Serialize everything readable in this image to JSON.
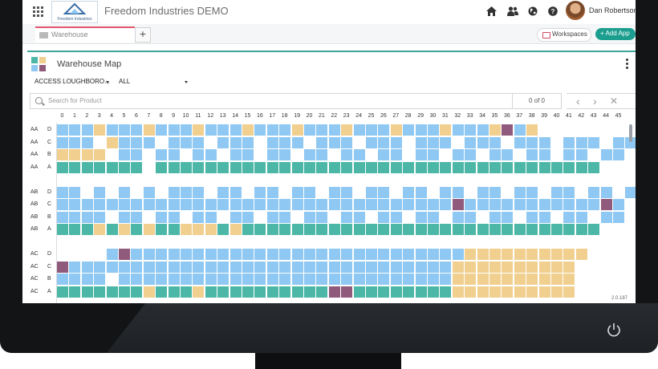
{
  "app": {
    "title": "Freedom Industries  DEMO",
    "logo_text": "Freedom Industries",
    "user_name": "Dan Robertson",
    "version": "2.0.187"
  },
  "tabs": [
    {
      "label": "Warehouse"
    }
  ],
  "header_buttons": {
    "workspaces": "Workspaces",
    "add_app": "+ Add App"
  },
  "top_icons": [
    "home-icon",
    "people-icon",
    "globe-icon",
    "help-icon"
  ],
  "panel": {
    "title": "Warehouse Map",
    "location_select": "ACCESS LOUGHBORO...",
    "filter_select": "ALL",
    "search_placeholder": "Search for Product",
    "result_count": "0 of 0",
    "nav": {
      "prev": "‹",
      "next": "›",
      "clear": "✕"
    }
  },
  "colors": {
    "empty": "#8ec8f3",
    "stocked": "#4cb7a6",
    "reserved": "#f0cf8f",
    "flagged": "#8f5a7c",
    "accent": "#1b9e8e",
    "tab_accent": "#e1576f"
  },
  "legend_codes": {
    "E": "empty",
    "G": "stocked",
    "Y": "reserved",
    "P": "flagged",
    ".": "none"
  },
  "columns": [
    "0",
    "1",
    "2",
    "3",
    "4",
    "5",
    "6",
    "7",
    "8",
    "9",
    "10",
    "11",
    "12",
    "13",
    "14",
    "15",
    "16",
    "17",
    "18",
    "19",
    "20",
    "21",
    "22",
    "23",
    "24",
    "25",
    "26",
    "27",
    "28",
    "29",
    "30",
    "31",
    "32",
    "33",
    "34",
    "35",
    "36",
    "37",
    "38",
    "39",
    "40",
    "41",
    "42",
    "43",
    "44",
    "45"
  ],
  "rows": [
    {
      "aisle": "AA",
      "level": "D",
      "cells": "EEEYEEEYEEEYEEEYEEEYEEEYEEEYEEEYEEEYPEY..................."
    },
    {
      "aisle": "AA",
      "level": "C",
      "cells": "EEE.YEEE.EEE.EEE.EEE.EEE.EEE.EEE.EEE.EEE.EEE.EEE.EEE.EE"
    },
    {
      "aisle": "AA",
      "level": "B",
      "cells": "YYYY.EE.EE.EE.EE.EE.EE.EE.EE.EE.EE.EE.EE.EE.EE.EE.G"
    },
    {
      "aisle": "AA",
      "level": "A",
      "cells": "GGGGGGG.GGGGGGGGGGGGGGGGGGGGGGGGGGGGGGGGGGGG"
    },
    {
      "aisle": "",
      "level": "",
      "cells": ""
    },
    {
      "aisle": "AB",
      "level": "D",
      "cells": "EE.E.E.E.EEE.EE.EE.EE.EE.EE.EE.EE.EE.EE.EE.EE.EE.EE"
    },
    {
      "aisle": "AB",
      "level": "C",
      "cells": "EEEEEEEEEEEEEEEEEEEEEEEEEEEEEEEEPEEEEEEEEEEEPE"
    },
    {
      "aisle": "AB",
      "level": "B",
      "cells": "EEEE.EE.EE.EE.EE.EE.EE.EE.EE.EE.EE.EE.EE.EE.EE.EE"
    },
    {
      "aisle": "AB",
      "level": "A",
      "cells": "GGGYGYGYGGYYYGYGGGGGGGGGGGGGGGGGGGGGGGGGGGGG"
    },
    {
      "aisle": "",
      "level": "",
      "cells": ""
    },
    {
      "aisle": "AC",
      "level": "D",
      "cells": "....EPEEEEEEEEEEEEEEEEEEEEEEEEEEEYYYYYYYYYY"
    },
    {
      "aisle": "AC",
      "level": "C",
      "cells": "PEEEEEEEEEEEEEEEEEEEEEEEEEEEEEEEYYYYYYYYYY"
    },
    {
      "aisle": "AC",
      "level": "B",
      "cells": "EEEE.EEEEEEEEEEEEEEEEEEEEEEEEEEEYYYYYYYYYY"
    },
    {
      "aisle": "AC",
      "level": "A",
      "cells": "GGGGGGGYGGGYGGGGGGGGGGPPGGGGGGGGYYYYYYYYYY"
    }
  ]
}
